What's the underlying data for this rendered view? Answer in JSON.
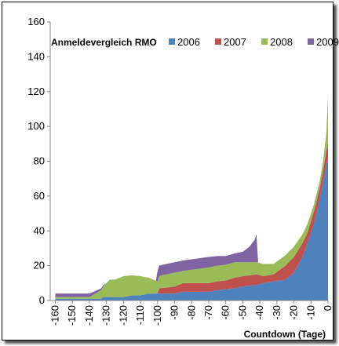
{
  "chart_data": {
    "type": "area",
    "title": "Anmeldevergleich RMO",
    "xlabel": "Countdown (Tage)",
    "ylabel": "",
    "xlim": [
      -163,
      0
    ],
    "ylim": [
      0,
      160
    ],
    "xticks": [
      -160,
      -150,
      -140,
      -130,
      -120,
      -110,
      -100,
      -90,
      -80,
      -70,
      -60,
      -50,
      -40,
      -30,
      -20,
      -10,
      0
    ],
    "yticks": [
      0,
      20,
      40,
      60,
      80,
      100,
      120,
      140,
      160
    ],
    "grid": false,
    "legend_position": "top-right",
    "stacked": true,
    "series": [
      {
        "name": "2006",
        "color": "#4F81BD",
        "points": [
          [
            -160,
            1
          ],
          [
            -133,
            1
          ],
          [
            -132,
            2
          ],
          [
            -120,
            2
          ],
          [
            -115,
            3
          ],
          [
            -110,
            3
          ],
          [
            -105,
            4
          ],
          [
            -90,
            4
          ],
          [
            -85,
            5
          ],
          [
            -70,
            5
          ],
          [
            -65,
            6
          ],
          [
            -55,
            7
          ],
          [
            -50,
            8
          ],
          [
            -42,
            9
          ],
          [
            -38,
            10
          ],
          [
            -32,
            11
          ],
          [
            -25,
            12
          ],
          [
            -20,
            16
          ],
          [
            -15,
            25
          ],
          [
            -12,
            33
          ],
          [
            -8,
            45
          ],
          [
            -5,
            58
          ],
          [
            -3,
            68
          ],
          [
            -1,
            78
          ],
          [
            0,
            82
          ]
        ]
      },
      {
        "name": "2007",
        "color": "#C0504D",
        "points": [
          [
            -160,
            0
          ],
          [
            -100,
            0
          ],
          [
            -99,
            3
          ],
          [
            -90,
            4
          ],
          [
            -85,
            5
          ],
          [
            -70,
            5
          ],
          [
            -60,
            5
          ],
          [
            -55,
            6
          ],
          [
            -50,
            6
          ],
          [
            -42,
            6
          ],
          [
            -38,
            4
          ],
          [
            -32,
            4
          ],
          [
            -25,
            8
          ],
          [
            -20,
            9
          ],
          [
            -15,
            8
          ],
          [
            -12,
            6
          ],
          [
            -8,
            7
          ],
          [
            -5,
            6
          ],
          [
            -3,
            6
          ],
          [
            -1,
            8
          ],
          [
            0,
            8
          ]
        ]
      },
      {
        "name": "2008",
        "color": "#9BBB59",
        "points": [
          [
            -160,
            1
          ],
          [
            -140,
            1
          ],
          [
            -133,
            5
          ],
          [
            -130,
            8
          ],
          [
            -128,
            10
          ],
          [
            -125,
            10
          ],
          [
            -120,
            12
          ],
          [
            -110,
            11
          ],
          [
            -100,
            7
          ],
          [
            -90,
            8
          ],
          [
            -85,
            7
          ],
          [
            -70,
            9
          ],
          [
            -60,
            9
          ],
          [
            -55,
            9
          ],
          [
            -50,
            8
          ],
          [
            -42,
            7
          ],
          [
            -38,
            7
          ],
          [
            -32,
            6
          ],
          [
            -25,
            6
          ],
          [
            -20,
            6
          ],
          [
            -15,
            5
          ],
          [
            -12,
            5
          ],
          [
            -8,
            4
          ],
          [
            -5,
            4
          ],
          [
            -3,
            5
          ],
          [
            -1,
            10
          ],
          [
            0,
            28
          ]
        ]
      },
      {
        "name": "2009",
        "color": "#8064A2",
        "points": [
          [
            -160,
            2
          ],
          [
            -150,
            2
          ],
          [
            -140,
            2
          ],
          [
            -133,
            1
          ],
          [
            -130,
            0
          ],
          [
            -101,
            0
          ],
          [
            -100,
            6
          ],
          [
            -90,
            6
          ],
          [
            -85,
            6
          ],
          [
            -70,
            6
          ],
          [
            -60,
            5
          ],
          [
            -55,
            5
          ],
          [
            -50,
            6
          ],
          [
            -46,
            9
          ],
          [
            -43,
            13
          ],
          [
            -42,
            16
          ],
          [
            -41,
            0
          ],
          [
            0,
            0
          ]
        ]
      }
    ]
  }
}
